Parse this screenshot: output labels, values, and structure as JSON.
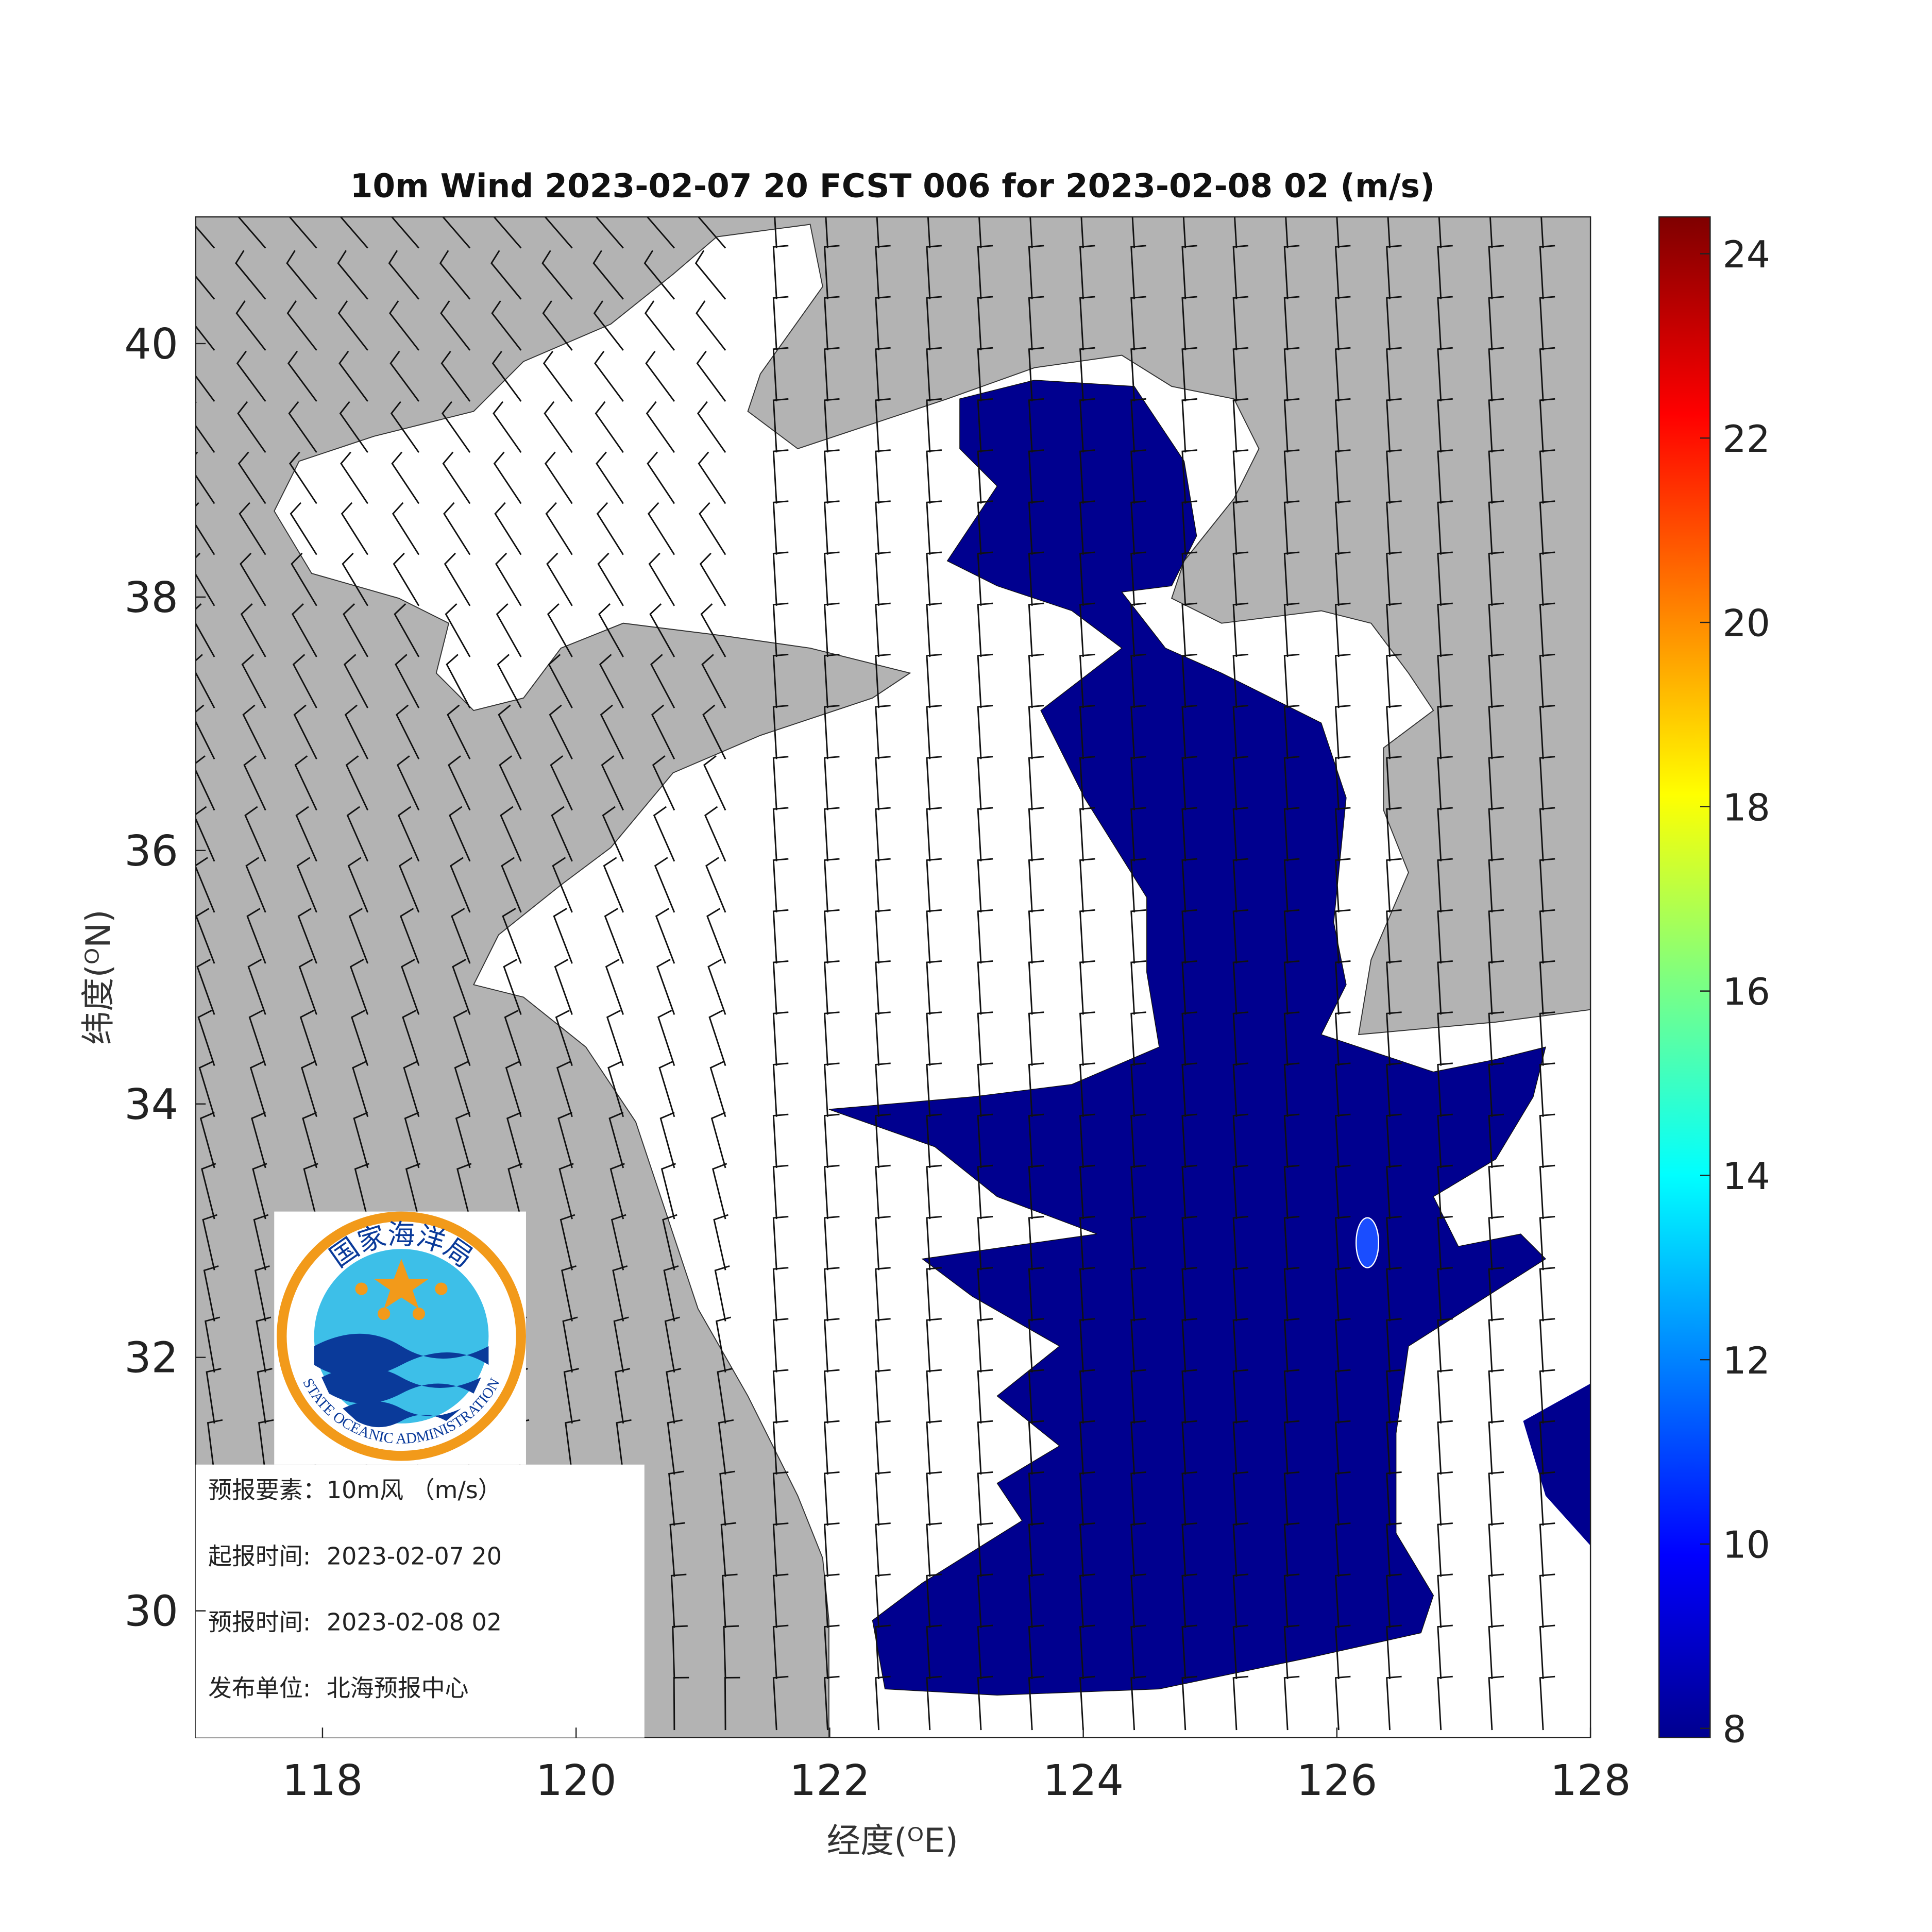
{
  "chart_data": {
    "type": "map",
    "title": "10m Wind 2023-02-07 20 FCST 006 for 2023-02-08 02 (m/s)",
    "x_label": "经度(ᴼE)",
    "y_label": "纬度(ᴼN)",
    "xlim": [
      117,
      128
    ],
    "ylim": [
      29,
      41
    ],
    "xticks": [
      118,
      120,
      122,
      124,
      126,
      128
    ],
    "yticks": [
      30,
      32,
      34,
      36,
      38,
      40
    ],
    "colorbar": {
      "lim": [
        7.9,
        24.4
      ],
      "ticks": [
        8,
        10,
        12,
        14,
        16,
        18,
        20,
        22,
        24
      ]
    }
  },
  "info_box": {
    "lines": [
      {
        "label": "预报要素：",
        "value": "10m风 （m/s）"
      },
      {
        "label": "起报时间:",
        "value": "2023-02-07 20"
      },
      {
        "label": "预报时间:",
        "value": "2023-02-08 02"
      },
      {
        "label": "发布单位:",
        "value": "北海预报中心"
      }
    ]
  },
  "logo": {
    "text_cn": "国家海洋局",
    "text_en": "STATE OCEANIC ADMINISTRATION"
  }
}
